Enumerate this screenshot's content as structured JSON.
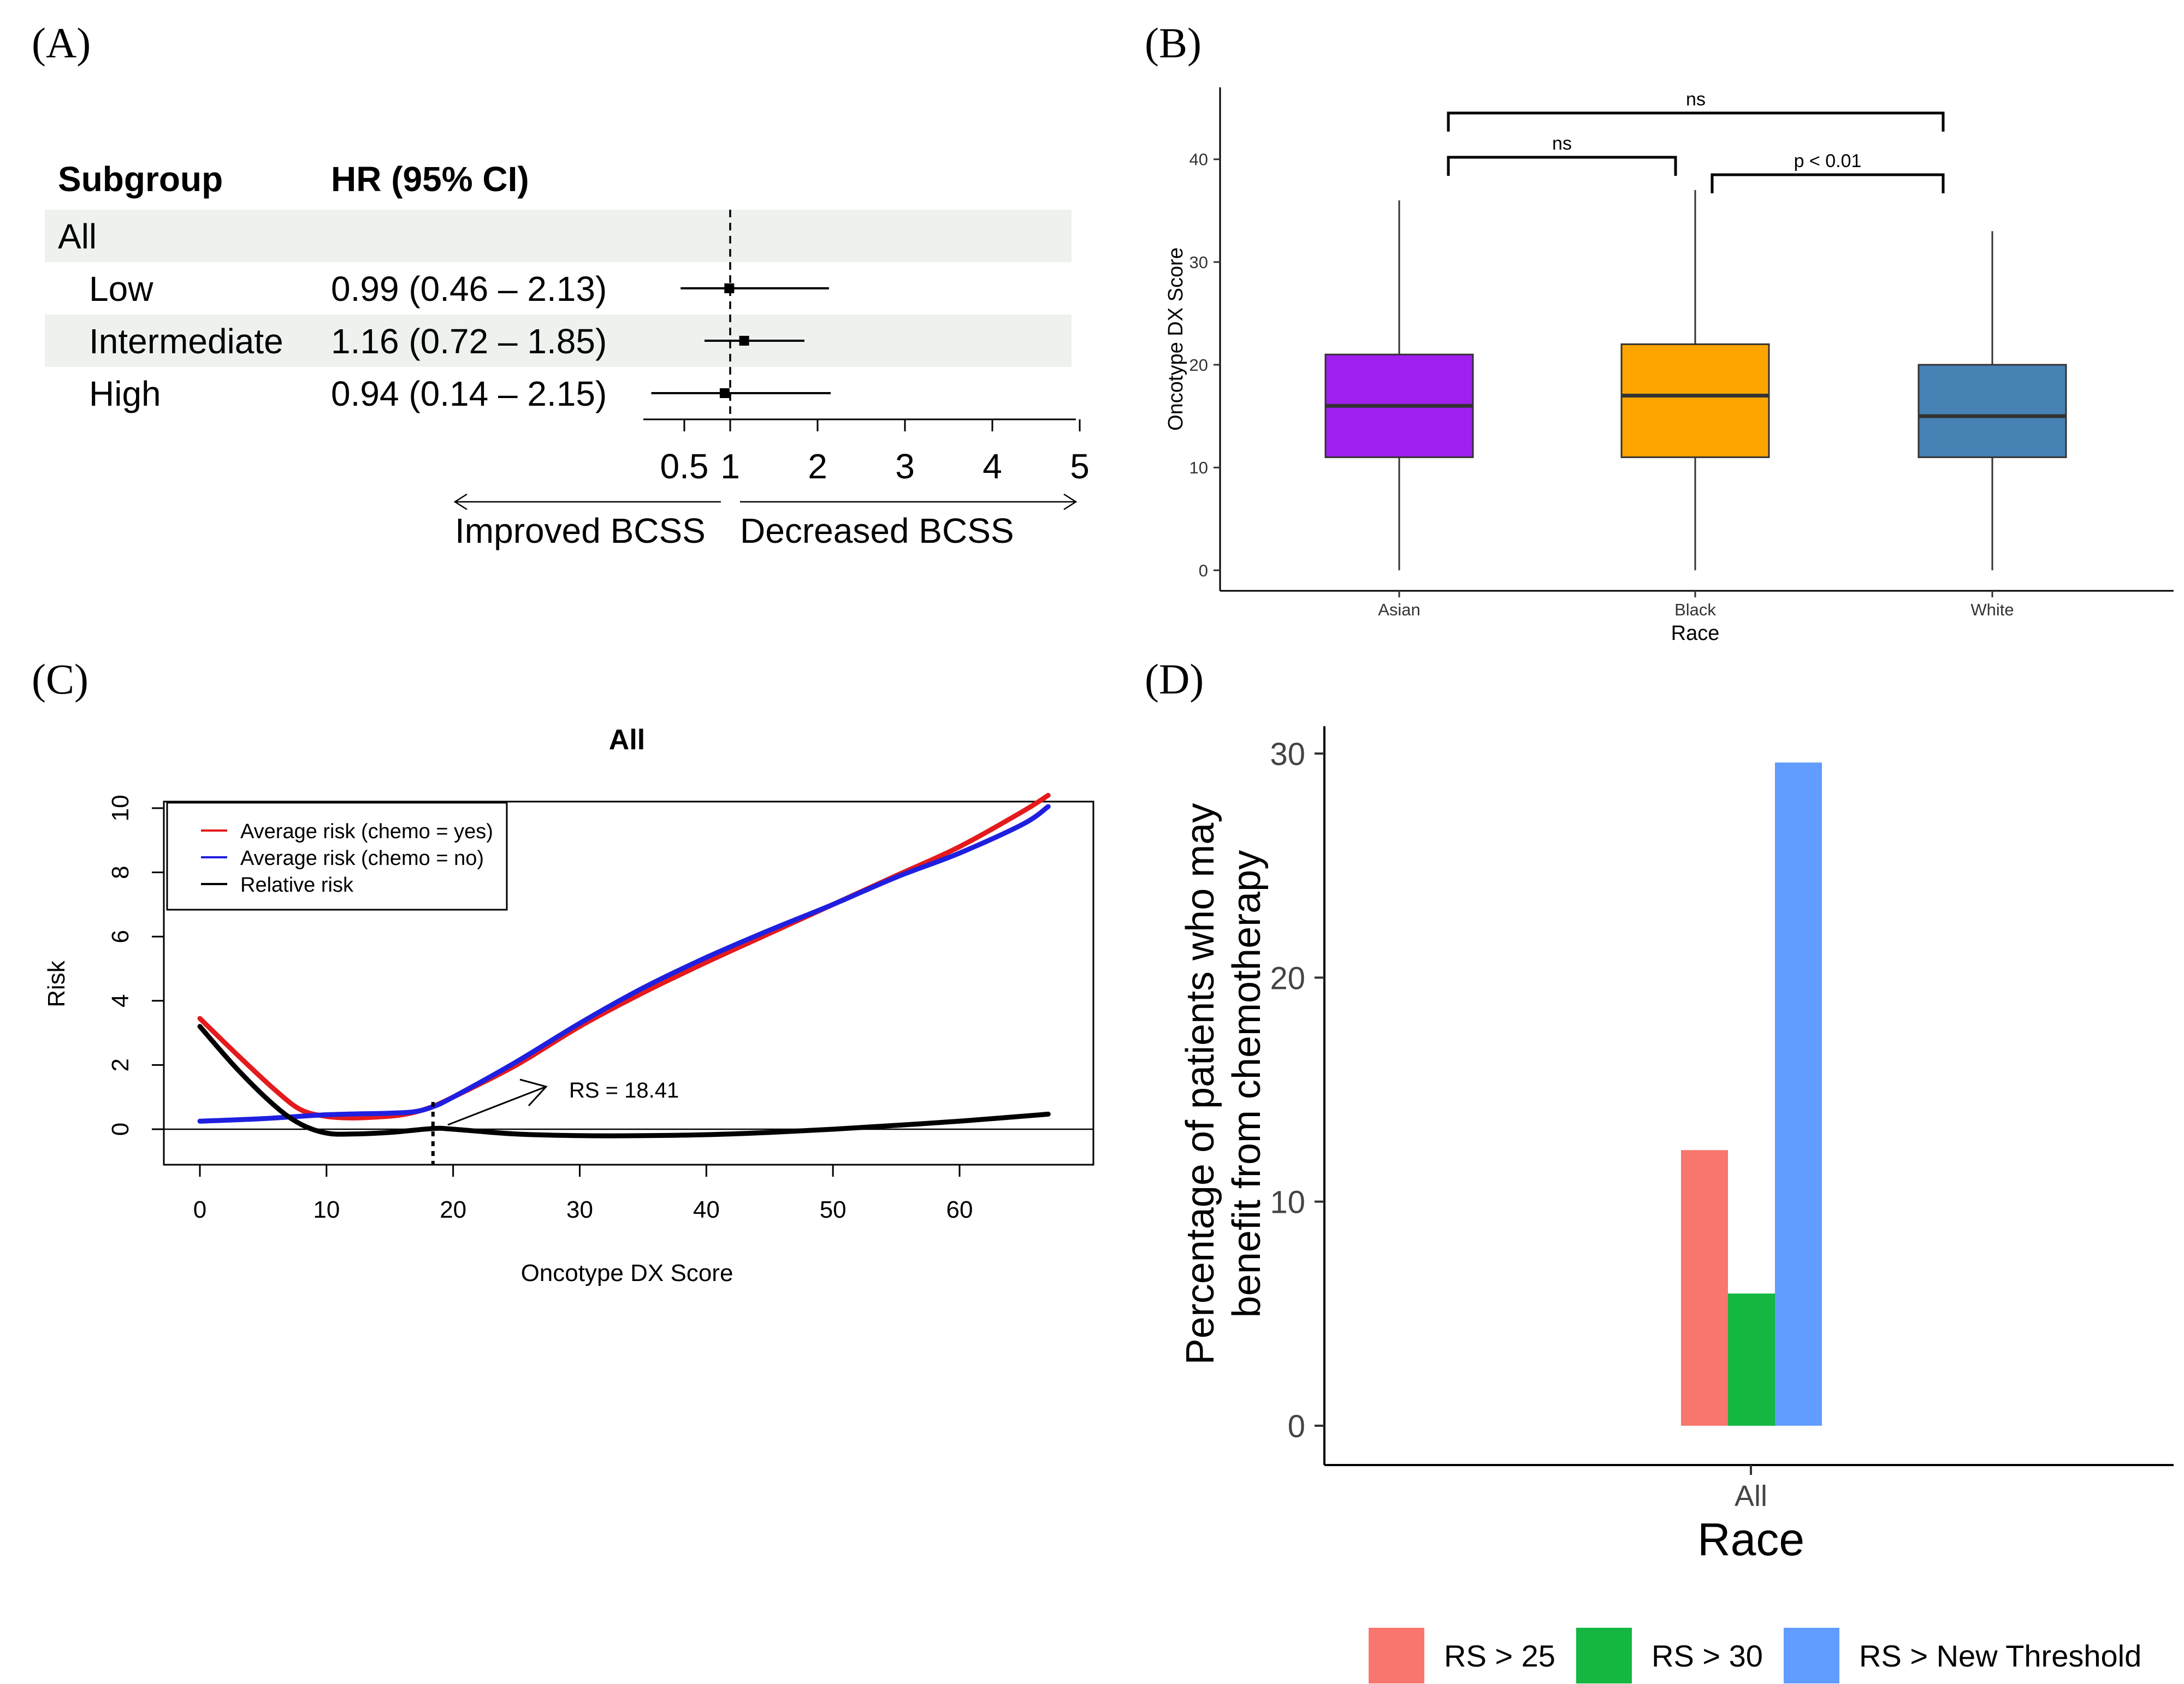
{
  "panel_labels": {
    "a": "(A)",
    "b": "(B)",
    "c": "(C)",
    "d": "(D)"
  },
  "chart_data": [
    {
      "panel": "A",
      "type": "table",
      "subtype": "forest",
      "headers": {
        "subgroup": "Subgroup",
        "hr": "HR (95% CI)"
      },
      "all_row": "All",
      "rows": [
        {
          "label": "Low",
          "hr_text": "0.99 (0.46 – 2.13)",
          "hr": 0.99,
          "lo": 0.46,
          "hi": 2.13
        },
        {
          "label": "Intermediate",
          "hr_text": "1.16 (0.72 – 1.85)",
          "hr": 1.16,
          "lo": 0.72,
          "hi": 1.85
        },
        {
          "label": "High",
          "hr_text": "0.94 (0.14 – 2.15)",
          "hr": 0.94,
          "lo": 0.14,
          "hi": 2.15
        }
      ],
      "x_ticks": [
        "0.5",
        "1",
        "2",
        "3",
        "4",
        "5"
      ],
      "reference": 1,
      "left_label": "Improved BCSS",
      "right_label": "Decreased BCSS"
    },
    {
      "panel": "B",
      "type": "bar",
      "subtype": "boxplot",
      "xlabel": "Race",
      "ylabel": "Oncotype DX Score",
      "ylim": [
        -2,
        47
      ],
      "yticks": [
        0,
        10,
        20,
        30,
        40
      ],
      "categories": [
        "Asian",
        "Black",
        "White"
      ],
      "boxes": [
        {
          "name": "Asian",
          "min": 0,
          "q1": 11,
          "median": 16,
          "q3": 21,
          "max": 36,
          "color": "#A020F0"
        },
        {
          "name": "Black",
          "min": 0,
          "q1": 11,
          "median": 17,
          "q3": 22,
          "max": 37,
          "color": "#FFA500"
        },
        {
          "name": "White",
          "min": 0,
          "q1": 11,
          "median": 15,
          "q3": 20,
          "max": 33,
          "color": "#4682B4"
        }
      ],
      "comparisons": [
        {
          "from": "Asian",
          "to": "White",
          "label": "ns",
          "y": 44.5
        },
        {
          "from": "Asian",
          "to": "Black",
          "label": "ns",
          "y": 40.2
        },
        {
          "from": "Black",
          "to": "White",
          "label": "p < 0.01",
          "y": 38.5
        }
      ]
    },
    {
      "panel": "C",
      "type": "line",
      "title": "All",
      "xlabel": "Oncotype DX Score",
      "ylabel": "Risk",
      "xlim": [
        -2.5,
        70
      ],
      "ylim": [
        -0.9,
        10.3
      ],
      "xticks": [
        0,
        10,
        20,
        30,
        40,
        50,
        60
      ],
      "yticks": [
        0,
        2,
        4,
        6,
        8,
        10
      ],
      "series": [
        {
          "name": "Average risk (chemo = yes)",
          "color": "#E41A1C",
          "x": [
            0,
            3,
            6,
            8,
            10,
            12,
            14,
            16,
            18,
            20,
            25,
            30,
            35,
            40,
            45,
            50,
            55,
            60,
            65,
            67
          ],
          "y": [
            3.45,
            2.3,
            1.2,
            0.6,
            0.4,
            0.35,
            0.38,
            0.45,
            0.65,
            1.0,
            2.0,
            3.2,
            4.25,
            5.2,
            6.1,
            7.0,
            7.9,
            8.8,
            9.9,
            10.4
          ]
        },
        {
          "name": "Average risk (chemo = no)",
          "color": "#1F1FE0",
          "x": [
            0,
            5,
            10,
            15,
            17,
            18.4,
            20,
            25,
            30,
            35,
            40,
            45,
            50,
            55,
            60,
            65,
            67
          ],
          "y": [
            0.25,
            0.33,
            0.45,
            0.5,
            0.55,
            0.7,
            1.0,
            2.1,
            3.3,
            4.4,
            5.35,
            6.2,
            7.0,
            7.85,
            8.6,
            9.5,
            10.05
          ]
        },
        {
          "name": "Relative risk",
          "color": "#000000",
          "x": [
            0,
            3,
            6,
            8,
            10,
            12,
            15,
            18.4,
            20,
            25,
            30,
            35,
            40,
            45,
            50,
            55,
            60,
            67
          ],
          "y": [
            3.2,
            1.85,
            0.7,
            0.15,
            -0.12,
            -0.15,
            -0.1,
            0.02,
            0.0,
            -0.15,
            -0.2,
            -0.2,
            -0.17,
            -0.1,
            0.0,
            0.12,
            0.25,
            0.47
          ]
        }
      ],
      "threshold_x": 18.41,
      "annotation": "RS = 18.41"
    },
    {
      "panel": "D",
      "type": "bar",
      "xlabel": "Race",
      "ylabel_line1": "Percentage of patients who may",
      "ylabel_line2": "benefit from chemotherapy",
      "categories": [
        "All"
      ],
      "ylim": [
        -1.5,
        31.4
      ],
      "yticks": [
        0,
        10,
        20,
        30
      ],
      "series": [
        {
          "name": "RS > 25",
          "values": [
            12.3
          ],
          "color": "#F8766D"
        },
        {
          "name": "RS > 30",
          "values": [
            5.9
          ],
          "color": "#13B742"
        },
        {
          "name": "RS > New Threshold",
          "values": [
            29.6
          ],
          "color": "#619CFF"
        }
      ]
    }
  ]
}
